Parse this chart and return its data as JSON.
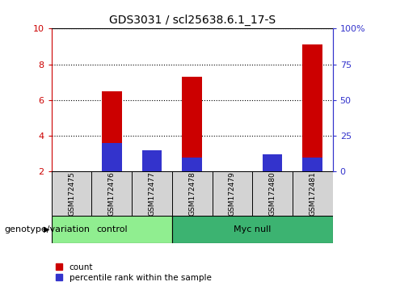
{
  "title": "GDS3031 / scl25638.6.1_17-S",
  "samples": [
    "GSM172475",
    "GSM172476",
    "GSM172477",
    "GSM172478",
    "GSM172479",
    "GSM172480",
    "GSM172481"
  ],
  "count_values": [
    2.0,
    6.5,
    2.6,
    7.3,
    2.0,
    2.1,
    9.1
  ],
  "percentile_values": [
    0.0,
    20.0,
    15.0,
    10.0,
    0.0,
    12.0,
    10.0
  ],
  "groups": [
    {
      "label": "control",
      "start": 0,
      "end": 3,
      "color": "#90EE90"
    },
    {
      "label": "Myc null",
      "start": 3,
      "end": 7,
      "color": "#3CB371"
    }
  ],
  "ylim_left": [
    2,
    10
  ],
  "ylim_right": [
    0,
    100
  ],
  "yticks_left": [
    2,
    4,
    6,
    8,
    10
  ],
  "yticks_right": [
    0,
    25,
    50,
    75,
    100
  ],
  "ytick_labels_right": [
    "0",
    "25",
    "50",
    "75",
    "100%"
  ],
  "bar_color_red": "#CC0000",
  "bar_color_blue": "#3333CC",
  "bg_color_plot": "#ffffff",
  "bg_color_labels": "#D3D3D3",
  "grid_color": "black",
  "left_axis_color": "#CC0000",
  "right_axis_color": "#3333CC",
  "bar_width": 0.5,
  "legend_count": "count",
  "legend_percentile": "percentile rank within the sample",
  "xlabel_group": "genotype/variation"
}
